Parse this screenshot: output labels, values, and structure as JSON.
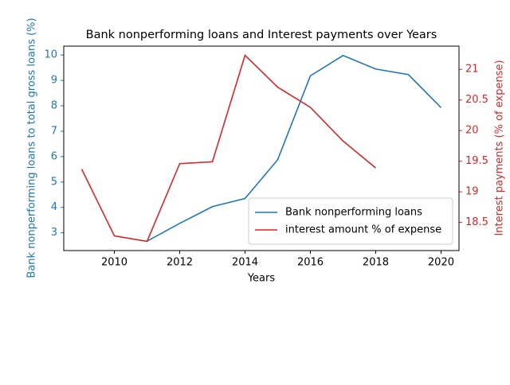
{
  "chart_data": {
    "type": "line",
    "title": "Bank nonperforming loans and Interest payments over Years",
    "x_label": "Years",
    "y_label": "Bank nonperforming loans to total gross loans (%)",
    "y2_label": "Interest payments (% of expense)",
    "x": [
      2009,
      2010,
      2011,
      2012,
      2013,
      2014,
      2015,
      2016,
      2017,
      2018,
      2019,
      2020
    ],
    "series": [
      {
        "name": "Bank nonperforming loans",
        "color": "#1f77b4",
        "values": [
          null,
          null,
          2.67,
          3.37,
          4.03,
          4.35,
          5.88,
          9.18,
          9.98,
          9.45,
          9.23,
          7.93
        ]
      },
      {
        "name": "interest amount % of expense",
        "color": "#d62728",
        "axis": "y2",
        "values": [
          19.37,
          18.28,
          18.19,
          19.46,
          19.49,
          21.23,
          20.71,
          20.38,
          19.83,
          19.39,
          null,
          null
        ]
      }
    ],
    "xlim": [
      2008.45,
      2020.55
    ],
    "xticks": [
      2010,
      2012,
      2014,
      2016,
      2018,
      2020
    ],
    "ylim": [
      2.3,
      10.35
    ],
    "yticks": [
      3,
      4,
      5,
      6,
      7,
      8,
      9,
      10
    ],
    "y2lim": [
      18.04,
      21.38
    ],
    "y2ticks": [
      18.5,
      19.0,
      19.5,
      20.0,
      20.5,
      21.0
    ],
    "legend": "lower right"
  }
}
